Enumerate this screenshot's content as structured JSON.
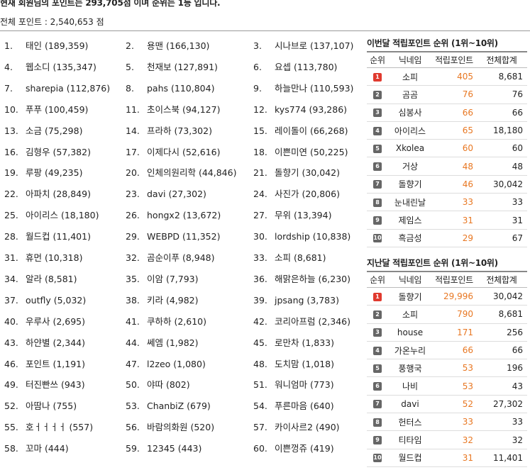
{
  "header": {
    "headline": "현재 회원님의 포인트는 293,705점 이며 순위는 1등 입니다.",
    "total_points": "전체 포인트 : 2,540,653 점"
  },
  "ranking": [
    {
      "rank": "1.",
      "name": "태인 (189,359)"
    },
    {
      "rank": "2.",
      "name": "용맨 (166,130)"
    },
    {
      "rank": "3.",
      "name": "시나브로 (137,107)"
    },
    {
      "rank": "4.",
      "name": "웹소디 (135,347)"
    },
    {
      "rank": "5.",
      "name": "천재보 (127,891)"
    },
    {
      "rank": "6.",
      "name": "요셉 (113,780)"
    },
    {
      "rank": "7.",
      "name": "sharepia (112,876)"
    },
    {
      "rank": "8.",
      "name": "pahs (110,804)"
    },
    {
      "rank": "9.",
      "name": "하늘만나 (110,593)"
    },
    {
      "rank": "10.",
      "name": "푸푸 (100,459)"
    },
    {
      "rank": "11.",
      "name": "초이스북 (94,127)"
    },
    {
      "rank": "12.",
      "name": "kys774 (93,286)"
    },
    {
      "rank": "13.",
      "name": "소금 (75,298)"
    },
    {
      "rank": "14.",
      "name": "프라하 (73,302)"
    },
    {
      "rank": "15.",
      "name": "레이돌이 (66,268)"
    },
    {
      "rank": "16.",
      "name": "김형우 (57,382)"
    },
    {
      "rank": "17.",
      "name": "이제다시 (52,616)"
    },
    {
      "rank": "18.",
      "name": "이쁜미연 (50,225)"
    },
    {
      "rank": "19.",
      "name": "루팡 (49,235)"
    },
    {
      "rank": "20.",
      "name": "인체의원리학 (44,846)"
    },
    {
      "rank": "21.",
      "name": "돌향기 (30,042)"
    },
    {
      "rank": "22.",
      "name": "아파치 (28,849)"
    },
    {
      "rank": "23.",
      "name": "davi (27,302)"
    },
    {
      "rank": "24.",
      "name": "사진가 (20,806)"
    },
    {
      "rank": "25.",
      "name": "아이리스 (18,180)"
    },
    {
      "rank": "26.",
      "name": "hongx2 (13,672)"
    },
    {
      "rank": "27.",
      "name": "무위 (13,394)"
    },
    {
      "rank": "28.",
      "name": "월드컵 (11,401)"
    },
    {
      "rank": "29.",
      "name": "WEBPD (11,352)"
    },
    {
      "rank": "30.",
      "name": "lordship (10,838)"
    },
    {
      "rank": "31.",
      "name": "휴먼 (10,318)"
    },
    {
      "rank": "32.",
      "name": "곰순이푸 (8,948)"
    },
    {
      "rank": "33.",
      "name": "소피 (8,681)"
    },
    {
      "rank": "34.",
      "name": "알라 (8,581)"
    },
    {
      "rank": "35.",
      "name": "이암 (7,793)"
    },
    {
      "rank": "36.",
      "name": "해맑은하늘 (6,230)"
    },
    {
      "rank": "37.",
      "name": "outfly (5,032)"
    },
    {
      "rank": "38.",
      "name": "키라 (4,982)"
    },
    {
      "rank": "39.",
      "name": "jpsang (3,783)"
    },
    {
      "rank": "40.",
      "name": "우루사 (2,695)"
    },
    {
      "rank": "41.",
      "name": "쿠하하 (2,610)"
    },
    {
      "rank": "42.",
      "name": "코리아프럼 (2,346)"
    },
    {
      "rank": "43.",
      "name": "하얀별 (2,344)"
    },
    {
      "rank": "44.",
      "name": "쎄엠 (1,982)"
    },
    {
      "rank": "45.",
      "name": "로만차 (1,833)"
    },
    {
      "rank": "46.",
      "name": "포인트 (1,191)"
    },
    {
      "rank": "47.",
      "name": "l2zeo (1,080)"
    },
    {
      "rank": "48.",
      "name": "도치맘 (1,018)"
    },
    {
      "rank": "49.",
      "name": "터진빤쓰 (943)"
    },
    {
      "rank": "50.",
      "name": "야따 (802)"
    },
    {
      "rank": "51.",
      "name": "워니엄마 (773)"
    },
    {
      "rank": "52.",
      "name": "아땀나 (755)"
    },
    {
      "rank": "53.",
      "name": "ChanbiZ (679)"
    },
    {
      "rank": "54.",
      "name": "푸른마음 (640)"
    },
    {
      "rank": "55.",
      "name": "호ㅓㅓㅓㅓ (557)"
    },
    {
      "rank": "56.",
      "name": "바람의화원 (520)"
    },
    {
      "rank": "57.",
      "name": "카이사르2 (490)"
    },
    {
      "rank": "58.",
      "name": "꼬마 (444)"
    },
    {
      "rank": "59.",
      "name": "12345 (443)"
    },
    {
      "rank": "60.",
      "name": "이쁜껑쥬 (419)"
    }
  ],
  "this_month": {
    "title": "이번달 적립포인트 순위 (1위~10위)",
    "headers": [
      "순위",
      "닉네임",
      "적립포인트",
      "전체합계"
    ],
    "rows": [
      {
        "badge": "1",
        "nick": "소피",
        "earned": "405",
        "total": "8,681"
      },
      {
        "badge": "2",
        "nick": "곰곰",
        "earned": "76",
        "total": "76"
      },
      {
        "badge": "3",
        "nick": "심봉사",
        "earned": "66",
        "total": "66"
      },
      {
        "badge": "4",
        "nick": "아이리스",
        "earned": "65",
        "total": "18,180"
      },
      {
        "badge": "5",
        "nick": "Xkolea",
        "earned": "60",
        "total": "60"
      },
      {
        "badge": "6",
        "nick": "거상",
        "earned": "48",
        "total": "48"
      },
      {
        "badge": "7",
        "nick": "돌향기",
        "earned": "46",
        "total": "30,042"
      },
      {
        "badge": "8",
        "nick": "눈내린날",
        "earned": "33",
        "total": "33"
      },
      {
        "badge": "9",
        "nick": "제임스",
        "earned": "31",
        "total": "31"
      },
      {
        "badge": "10",
        "nick": "흑금성",
        "earned": "29",
        "total": "67"
      }
    ]
  },
  "last_month": {
    "title": "지난달 적립포인트 순위 (1위~10위)",
    "headers": [
      "순위",
      "닉네임",
      "적립포인트",
      "전체합계"
    ],
    "rows": [
      {
        "badge": "1",
        "nick": "돌향기",
        "earned": "29,996",
        "total": "30,042"
      },
      {
        "badge": "2",
        "nick": "소피",
        "earned": "790",
        "total": "8,681"
      },
      {
        "badge": "3",
        "nick": "house",
        "earned": "171",
        "total": "256"
      },
      {
        "badge": "4",
        "nick": "가온누리",
        "earned": "66",
        "total": "66"
      },
      {
        "badge": "5",
        "nick": "풍행국",
        "earned": "53",
        "total": "196"
      },
      {
        "badge": "6",
        "nick": "나비",
        "earned": "53",
        "total": "43"
      },
      {
        "badge": "7",
        "nick": "davi",
        "earned": "52",
        "total": "27,302"
      },
      {
        "badge": "8",
        "nick": "헌터스",
        "earned": "33",
        "total": "33"
      },
      {
        "badge": "9",
        "nick": "티타임",
        "earned": "32",
        "total": "32"
      },
      {
        "badge": "10",
        "nick": "월드컵",
        "earned": "31",
        "total": "11,401"
      }
    ]
  },
  "colors": {
    "earned": "#e87722",
    "badge_first": "#e03a2f",
    "badge_default": "#666666"
  }
}
